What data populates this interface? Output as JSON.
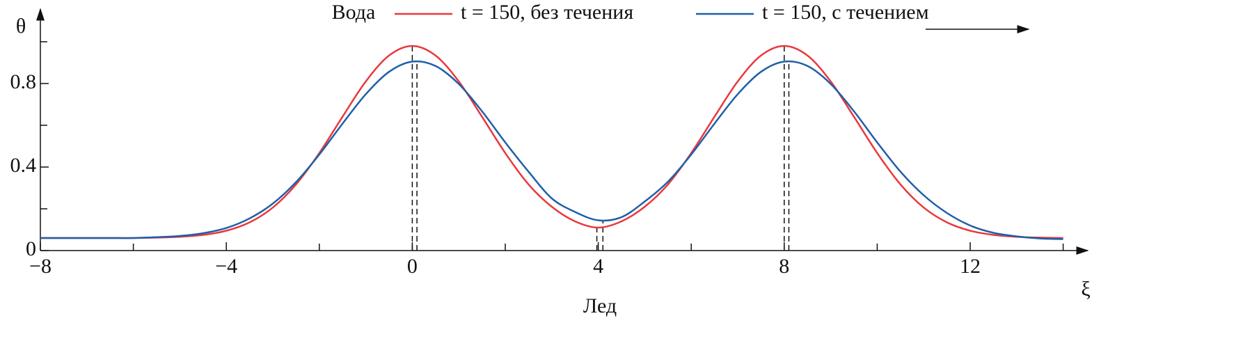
{
  "chart_data": {
    "type": "line",
    "xlabel": "ξ",
    "ylabel": "θ",
    "annotations": {
      "top": "Вода",
      "bottom": "Лед"
    },
    "x": [
      -8,
      -7.5,
      -7,
      -6.5,
      -6,
      -5.5,
      -5,
      -4.5,
      -4,
      -3.5,
      -3,
      -2.5,
      -2,
      -1.5,
      -1,
      -0.5,
      0,
      0.5,
      1,
      1.5,
      2,
      2.5,
      3,
      3.5,
      4,
      4.5,
      5,
      5.5,
      6,
      6.5,
      7,
      7.5,
      8,
      8.5,
      9,
      9.5,
      10,
      10.5,
      11,
      11.5,
      12,
      12.5,
      13,
      13.5,
      14
    ],
    "series": [
      {
        "name": "t = 150, без течения",
        "color": "#e8383d",
        "values": [
          0.06,
          0.06,
          0.06,
          0.06,
          0.06,
          0.062,
          0.066,
          0.075,
          0.095,
          0.135,
          0.206,
          0.317,
          0.467,
          0.641,
          0.81,
          0.934,
          0.98,
          0.934,
          0.81,
          0.641,
          0.467,
          0.317,
          0.21,
          0.14,
          0.11,
          0.14,
          0.21,
          0.317,
          0.467,
          0.641,
          0.81,
          0.934,
          0.98,
          0.934,
          0.81,
          0.641,
          0.467,
          0.317,
          0.206,
          0.135,
          0.095,
          0.075,
          0.066,
          0.062,
          0.06
        ]
      },
      {
        "name": "t = 150, с течением",
        "color": "#1f5fa8",
        "values": [
          0.06,
          0.06,
          0.06,
          0.06,
          0.06,
          0.064,
          0.07,
          0.083,
          0.108,
          0.154,
          0.225,
          0.328,
          0.46,
          0.608,
          0.749,
          0.856,
          0.905,
          0.884,
          0.798,
          0.667,
          0.518,
          0.378,
          0.25,
          0.185,
          0.145,
          0.16,
          0.235,
          0.33,
          0.46,
          0.608,
          0.749,
          0.856,
          0.905,
          0.884,
          0.798,
          0.667,
          0.518,
          0.378,
          0.265,
          0.18,
          0.12,
          0.085,
          0.068,
          0.058,
          0.055
        ]
      }
    ],
    "vlines": {
      "x": [
        0,
        0.1,
        3.97,
        4.1,
        8,
        8.1
      ],
      "y": [
        0.98,
        0.905,
        0.11,
        0.142,
        0.98,
        0.905
      ]
    },
    "xlim": [
      -8,
      14.5
    ],
    "ylim": [
      0,
      1.15
    ],
    "xticks": [
      {
        "value": -8,
        "label": "−8"
      },
      {
        "value": -4,
        "label": "−4"
      },
      0,
      4,
      8,
      12
    ],
    "xminorticks": [
      -6,
      -2,
      2,
      6,
      10,
      14
    ],
    "yticks": [
      0,
      0.4,
      0.8
    ],
    "yminorticks": [
      0.2,
      0.6,
      1.0
    ]
  }
}
